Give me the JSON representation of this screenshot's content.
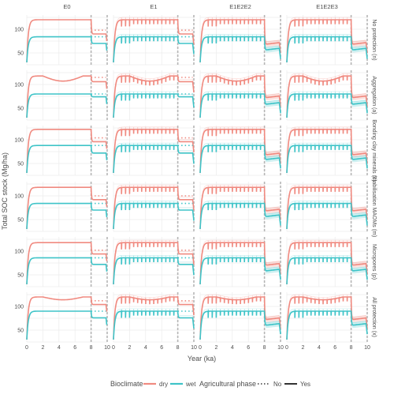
{
  "figure": {
    "ylabel": "Total SOC stock (Mg/ha)",
    "xlabel": "Year (ka)",
    "columns": [
      "E0",
      "E1",
      "E1E2E2",
      "E1E2E3"
    ],
    "rows": [
      "No protection (n)",
      "Aggregation (a)",
      "Bonding clay minerals (c)",
      "Stabilisation MAOMs (m)",
      "Micropores (p)",
      "All protection (x)"
    ]
  },
  "legend": {
    "bioclimate_title": "Bioclimate",
    "bioclimate_items": [
      {
        "label": "dry",
        "color": "#F08A80"
      },
      {
        "label": "wet",
        "color": "#3FC4C8"
      }
    ],
    "phase_title": "Agricultural phase",
    "phase_items": [
      {
        "label": "No",
        "style": "dotted"
      },
      {
        "label": "Yes",
        "style": "solid"
      }
    ]
  },
  "chart_data": {
    "type": "line",
    "facet_layout": "grid 6 rows x 4 columns",
    "x_range": [
      0,
      10
    ],
    "x_ticks": [
      0,
      2,
      4,
      6,
      8,
      10
    ],
    "y_range": [
      25,
      130
    ],
    "y_ticks": [
      50,
      100
    ],
    "vertical_lines": [
      8,
      10
    ],
    "grid": true,
    "legend_position": "bottom",
    "series_colors": {
      "dry": "#F08A80",
      "wet": "#3FC4C8"
    },
    "scenario_profiles": {
      "E0": "smooth, no periodic dips",
      "E1": "periodic sharp dips every ~0.5 ka",
      "E1E2E2": "periodic dips, strong drop after year 8",
      "E1E2E3": "periodic dips, strong drop after year 8"
    },
    "rows": [
      {
        "name": "No protection (n)",
        "dry": {
          "plateau": 120,
          "after8_no": 98,
          "after8_yes": 90,
          "after8_strong": 68
        },
        "wet": {
          "plateau": 84,
          "after8_no": 84,
          "after8_yes": 70,
          "after8_strong": 56
        }
      },
      {
        "name": "Aggregation (a)",
        "dry": {
          "plateau": 118,
          "mid_dip": 100,
          "after8_no": 115,
          "after8_yes": 106,
          "after8_strong": 72
        },
        "wet": {
          "plateau": 80,
          "after8_no": 80,
          "after8_yes": 74,
          "after8_strong": 58
        }
      },
      {
        "name": "Bonding clay minerals (c)",
        "dry": {
          "plateau": 122,
          "after8_no": 104,
          "after8_yes": 96,
          "after8_strong": 68
        },
        "wet": {
          "plateau": 88,
          "after8_no": 88,
          "after8_yes": 72,
          "after8_strong": 58
        }
      },
      {
        "name": "Stabilisation MAOMs (m)",
        "dry": {
          "plateau": 118,
          "after8_no": 100,
          "after8_yes": 92,
          "after8_strong": 68
        },
        "wet": {
          "plateau": 84,
          "after8_no": 84,
          "after8_yes": 70,
          "after8_strong": 56
        }
      },
      {
        "name": "Micropores (p)",
        "dry": {
          "plateau": 118,
          "after8_no": 102,
          "after8_yes": 94,
          "after8_strong": 70
        },
        "wet": {
          "plateau": 86,
          "after8_no": 86,
          "after8_yes": 72,
          "after8_strong": 58
        }
      },
      {
        "name": "All protection (x)",
        "dry": {
          "plateau": 120,
          "mid_dip": 110,
          "after8_no": 112,
          "after8_yes": 104,
          "after8_strong": 72
        },
        "wet": {
          "plateau": 90,
          "after8_no": 90,
          "after8_yes": 76,
          "after8_strong": 60
        }
      }
    ]
  }
}
